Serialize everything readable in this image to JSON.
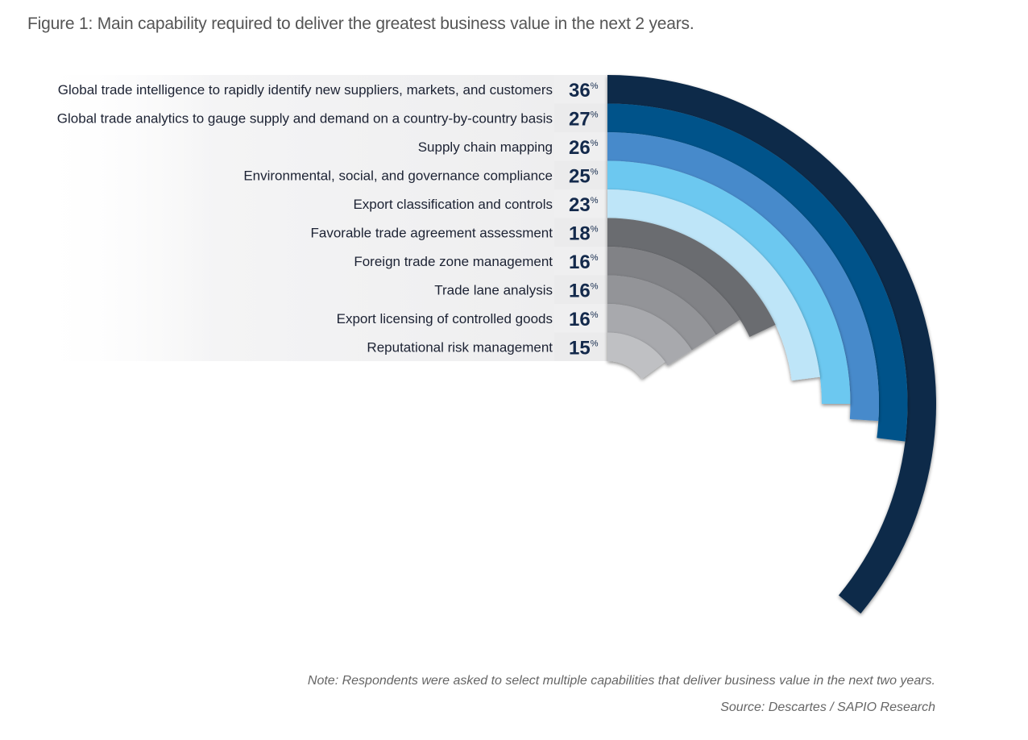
{
  "chart_data": {
    "type": "radial-bar",
    "title": "Figure 1: Main capability required to deliver the greatest business value in the next 2 years.",
    "unit": "%",
    "categories": [
      "Global trade intelligence to rapidly identify new suppliers, markets, and customers",
      "Global trade analytics to gauge supply and demand on a country-by-country basis",
      "Supply chain mapping",
      "Environmental, social, and governance compliance",
      "Export classification and controls",
      "Favorable trade agreement assessment",
      "Foreign trade zone management",
      "Trade lane analysis",
      "Export licensing of controlled goods",
      "Reputational risk management"
    ],
    "values": [
      36,
      27,
      26,
      25,
      23,
      18,
      16,
      16,
      16,
      15
    ],
    "colors": [
      "#0b2a4a",
      "#06538a",
      "#468acb",
      "#6cc8f0",
      "#bee5f8",
      "#6b6c70",
      "#818286",
      "#939498",
      "#a8a9ad",
      "#bfc0c3"
    ],
    "value_color": "#13294b",
    "full_circle_value": 100
  },
  "footer": {
    "note": "Note: Respondents were asked to select multiple capabilities that deliver business value in the next two years.",
    "source": "Source: Descartes / SAPIO Research"
  }
}
